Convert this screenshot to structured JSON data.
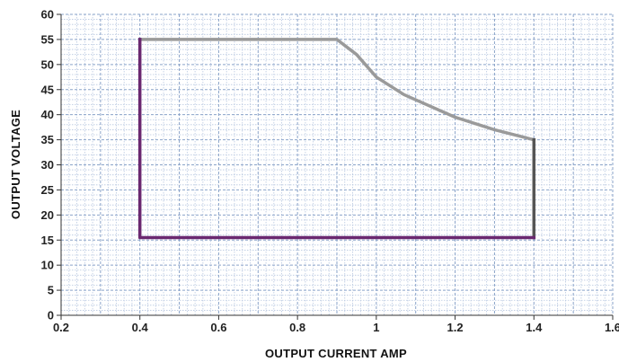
{
  "chart_data": {
    "type": "line",
    "title": "",
    "xlabel": "OUTPUT CURRENT AMP",
    "ylabel": "OUTPUT  VOLTAGE",
    "xlim": [
      0.2,
      1.6
    ],
    "ylim": [
      0,
      60
    ],
    "x_ticks": [
      "0.2",
      "0.4",
      "0.6",
      "0.8",
      "1",
      "1.2",
      "1.4",
      "1.6"
    ],
    "y_ticks": [
      "0",
      "5",
      "10",
      "15",
      "20",
      "25",
      "30",
      "35",
      "40",
      "45",
      "50",
      "55",
      "60"
    ],
    "grid": true,
    "legend": "none",
    "series": [
      {
        "color": "#9a9a9a",
        "points": [
          [
            0.4,
            55
          ],
          [
            0.9,
            55
          ],
          [
            0.95,
            52
          ],
          [
            1.0,
            47.5
          ],
          [
            1.07,
            44
          ],
          [
            1.2,
            39.5
          ],
          [
            1.3,
            37
          ],
          [
            1.4,
            35
          ]
        ]
      },
      {
        "color": "#555555",
        "points": [
          [
            1.4,
            35
          ],
          [
            1.4,
            15.5
          ]
        ]
      },
      {
        "color": "#6a2870",
        "points": [
          [
            1.4,
            15.5
          ],
          [
            0.4,
            15.5
          ],
          [
            0.4,
            55
          ]
        ]
      }
    ],
    "colors": {
      "background": "#ffffff",
      "grid_major": "#8aa3c9",
      "grid_minor": "#b8c7e0",
      "axis": "#333333"
    }
  }
}
